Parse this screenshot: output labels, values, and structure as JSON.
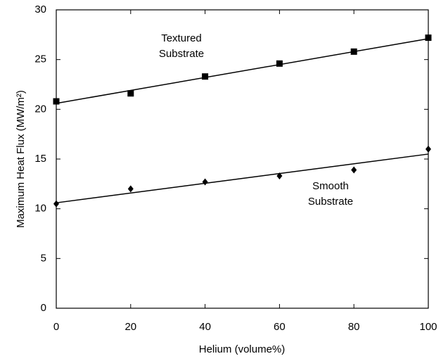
{
  "chart_data": {
    "type": "scatter",
    "x_label": "Helium (volume%)",
    "y_label": "Maximum Heat Flux (MW/m²)",
    "x": [
      0,
      20,
      40,
      60,
      80,
      100
    ],
    "series": [
      {
        "marker": "square",
        "color": "#000000",
        "values": [
          20.8,
          21.6,
          23.3,
          24.6,
          25.8,
          27.2
        ],
        "trend": [
          20.6,
          27.1
        ]
      },
      {
        "marker": "diamond",
        "color": "#000000",
        "values": [
          10.5,
          12.0,
          12.7,
          13.3,
          13.9,
          16.0
        ],
        "trend": [
          10.6,
          15.5
        ]
      }
    ],
    "annotations": [
      "Textured",
      "Substrate",
      "Smooth",
      "Substrate"
    ],
    "xlim": [
      0,
      100
    ],
    "xticks": [
      0,
      20,
      40,
      60,
      80,
      100
    ],
    "ylim": [
      0,
      30
    ],
    "yticks": [
      0,
      5,
      10,
      15,
      20,
      25,
      30
    ],
    "grid": false
  }
}
